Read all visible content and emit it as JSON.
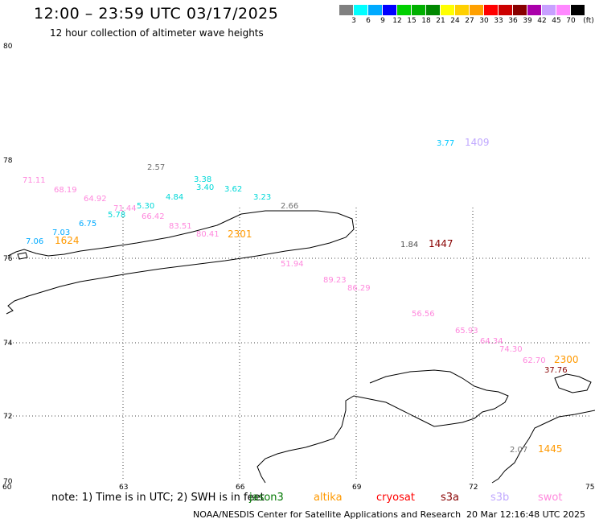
{
  "header": {
    "title": "12:00 – 23:59 UTC 03/17/2025",
    "subtitle": "12 hour collection of altimeter wave heights"
  },
  "legend": {
    "unit": "(ft)",
    "bins": [
      {
        "label": "3",
        "color": "#808080"
      },
      {
        "label": "6",
        "color": "#00ffff"
      },
      {
        "label": "9",
        "color": "#00aaff"
      },
      {
        "label": "12",
        "color": "#0000ff"
      },
      {
        "label": "15",
        "color": "#00d000"
      },
      {
        "label": "18",
        "color": "#00b000"
      },
      {
        "label": "21",
        "color": "#008800"
      },
      {
        "label": "24",
        "color": "#ffff00"
      },
      {
        "label": "27",
        "color": "#ffd000"
      },
      {
        "label": "30",
        "color": "#ffa000"
      },
      {
        "label": "33",
        "color": "#ff0000"
      },
      {
        "label": "36",
        "color": "#cc0000"
      },
      {
        "label": "39",
        "color": "#880000"
      },
      {
        "label": "42",
        "color": "#aa00aa"
      },
      {
        "label": "45",
        "color": "#c8a0ff"
      },
      {
        "label": "70",
        "color": "#ff88ff"
      },
      {
        "label": "",
        "color": "#000000"
      }
    ]
  },
  "axes": {
    "lat_labels": [
      "80",
      "78",
      "76",
      "74",
      "72",
      "70"
    ],
    "lon_labels": [
      "60",
      "63",
      "66",
      "69",
      "72",
      "75"
    ]
  },
  "observations": [
    {
      "text": "3.77",
      "color": "#00c8ff",
      "size": "small"
    },
    {
      "text": "1409",
      "color": "#c0a8ff",
      "size": "big"
    },
    {
      "text": "2.57",
      "color": "#707070",
      "size": "small"
    },
    {
      "text": "71.11",
      "color": "#ff88dd",
      "size": "small"
    },
    {
      "text": "3.38",
      "color": "#00d8d8",
      "size": "small"
    },
    {
      "text": "68.19",
      "color": "#ff88dd",
      "size": "small"
    },
    {
      "text": "3.40",
      "color": "#00d8d8",
      "size": "small"
    },
    {
      "text": "3.62",
      "color": "#00d8d8",
      "size": "small"
    },
    {
      "text": "64.92",
      "color": "#ff88dd",
      "size": "small"
    },
    {
      "text": "4.84",
      "color": "#00d8d8",
      "size": "small"
    },
    {
      "text": "3.23",
      "color": "#00d8d8",
      "size": "small"
    },
    {
      "text": "71.44",
      "color": "#ff88dd",
      "size": "small"
    },
    {
      "text": "5.30",
      "color": "#00d8d8",
      "size": "small"
    },
    {
      "text": "2.66",
      "color": "#707070",
      "size": "small"
    },
    {
      "text": "5.78",
      "color": "#00d8d8",
      "size": "small"
    },
    {
      "text": "66.42",
      "color": "#ff88dd",
      "size": "small"
    },
    {
      "text": "6.75",
      "color": "#00aaff",
      "size": "small"
    },
    {
      "text": "83.51",
      "color": "#ff88dd",
      "size": "small"
    },
    {
      "text": "7.03",
      "color": "#00aaff",
      "size": "small"
    },
    {
      "text": "80.41",
      "color": "#ff88dd",
      "size": "small"
    },
    {
      "text": "2301",
      "color": "#ff9900",
      "size": "big"
    },
    {
      "text": "7.06",
      "color": "#00aaff",
      "size": "small"
    },
    {
      "text": "1624",
      "color": "#ff9900",
      "size": "big"
    },
    {
      "text": "1.84",
      "color": "#505050",
      "size": "small"
    },
    {
      "text": "1447",
      "color": "#880000",
      "size": "big"
    },
    {
      "text": "51.94",
      "color": "#ff88dd",
      "size": "small"
    },
    {
      "text": "89.23",
      "color": "#ff88dd",
      "size": "small"
    },
    {
      "text": "86.29",
      "color": "#ff88dd",
      "size": "small"
    },
    {
      "text": "56.56",
      "color": "#ff88dd",
      "size": "small"
    },
    {
      "text": "65.93",
      "color": "#ff88dd",
      "size": "small"
    },
    {
      "text": "64.34",
      "color": "#ff88dd",
      "size": "small"
    },
    {
      "text": "74.30",
      "color": "#ff88dd",
      "size": "small"
    },
    {
      "text": "62.70",
      "color": "#ff88dd",
      "size": "small"
    },
    {
      "text": "2300",
      "color": "#ff9900",
      "size": "big"
    },
    {
      "text": "37.76",
      "color": "#880000",
      "size": "small"
    },
    {
      "text": "2.07",
      "color": "#707070",
      "size": "small"
    },
    {
      "text": "1445",
      "color": "#ff9900",
      "size": "big"
    }
  ],
  "footer": {
    "note": "note: 1) Time is in UTC; 2) SWH is in feet",
    "missions": [
      {
        "label": "jason3",
        "color": "#007700"
      },
      {
        "label": "altika",
        "color": "#ff9900"
      },
      {
        "label": "cryosat",
        "color": "#ff0000"
      },
      {
        "label": "s3a",
        "color": "#880000"
      },
      {
        "label": "s3b",
        "color": "#c0a8ff"
      },
      {
        "label": "swot",
        "color": "#ff88dd"
      }
    ],
    "credit": "NOAA/NESDIS Center for Satellite Applications and Research",
    "generated": "20 Mar 12:16:48 UTC 2025"
  }
}
